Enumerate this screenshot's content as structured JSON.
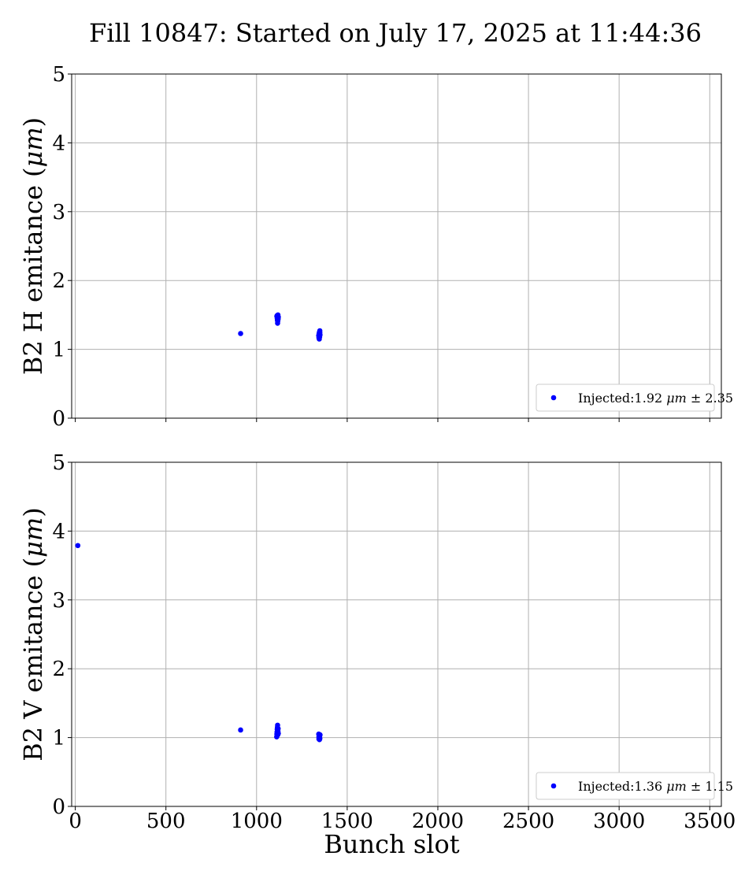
{
  "figure": {
    "title": "Fill 10847: Started on July 17, 2025 at 11:44:36"
  },
  "chart_data": [
    {
      "type": "scatter",
      "xlabel": "",
      "ylabel": "B2 H emitance (μm)",
      "ylabel_parts": [
        "B2 H emitance (",
        "μm",
        ")"
      ],
      "xlim": [
        -20,
        3564
      ],
      "ylim": [
        0,
        5
      ],
      "xticks": [
        0,
        500,
        1000,
        1500,
        2000,
        2500,
        3000,
        3500
      ],
      "yticks": [
        0,
        1,
        2,
        3,
        4,
        5
      ],
      "show_xtick_labels": false,
      "grid": true,
      "legend_position": "lower-right",
      "series": [
        {
          "legend_parts": [
            "Injected:1.92 ",
            "μm",
            " ± 2.35"
          ],
          "color": "#0000ff",
          "marker": "circle",
          "x": [
            912,
            1113,
            1114,
            1115,
            1116,
            1117,
            1118,
            1119,
            1120,
            1112,
            1117,
            1119,
            1343,
            1344,
            1345,
            1346,
            1347,
            1348,
            1349,
            1350,
            1345,
            1347,
            1349
          ],
          "y": [
            1.23,
            1.49,
            1.45,
            1.42,
            1.38,
            1.47,
            1.5,
            1.44,
            1.47,
            1.48,
            1.41,
            1.46,
            1.2,
            1.17,
            1.22,
            1.15,
            1.25,
            1.18,
            1.27,
            1.21,
            1.23,
            1.19,
            1.24
          ]
        }
      ]
    },
    {
      "type": "scatter",
      "xlabel": "Bunch slot",
      "ylabel": "B2 V emitance (μm)",
      "ylabel_parts": [
        "B2 V emitance (",
        "μm",
        ")"
      ],
      "xlim": [
        -20,
        3564
      ],
      "ylim": [
        0,
        5
      ],
      "xticks": [
        0,
        500,
        1000,
        1500,
        2000,
        2500,
        3000,
        3500
      ],
      "yticks": [
        0,
        1,
        2,
        3,
        4,
        5
      ],
      "show_xtick_labels": true,
      "grid": true,
      "legend_position": "lower-right",
      "series": [
        {
          "legend_parts": [
            "Injected:1.36 ",
            "μm",
            " ± 1.15"
          ],
          "color": "#0000ff",
          "marker": "circle",
          "x": [
            14,
            912,
            1111,
            1112,
            1113,
            1114,
            1115,
            1116,
            1117,
            1118,
            1119,
            1120,
            1343,
            1344,
            1345,
            1346,
            1347,
            1348,
            1349,
            1350,
            1344,
            1348
          ],
          "y": [
            3.79,
            1.11,
            1.01,
            1.05,
            1.08,
            1.12,
            1.15,
            1.18,
            1.04,
            1.09,
            1.13,
            1.06,
            1.05,
            0.98,
            1.0,
            1.03,
            0.97,
            1.02,
            0.99,
            1.04,
            1.01,
            0.98
          ]
        }
      ]
    }
  ]
}
